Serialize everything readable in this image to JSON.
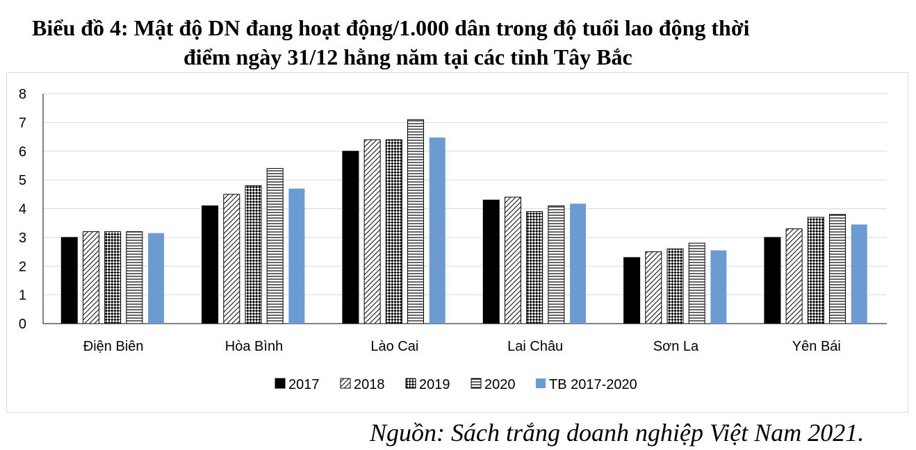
{
  "title": {
    "line1": "Biểu đồ 4: Mật độ DN đang hoạt động/1.000 dân trong độ tuổi lao động thời",
    "line2": "điểm ngày 31/12 hằng năm tại các tỉnh Tây Bắc"
  },
  "source": "Nguồn: Sách trắng doanh nghiệp Việt Nam 2021.",
  "chart_data": {
    "type": "bar",
    "title": "Biểu đồ 4: Mật độ DN đang hoạt động/1.000 dân trong độ tuổi lao động thời điểm ngày 31/12 hằng năm tại các tỉnh Tây Bắc",
    "categories": [
      "Điện Biên",
      "Hòa Bình",
      "Lào Cai",
      "Lai Châu",
      "Sơn La",
      "Yên Bái"
    ],
    "series": [
      {
        "name": "2017",
        "fill": "solid-black",
        "values": [
          3.0,
          4.1,
          6.0,
          4.3,
          2.3,
          3.0
        ]
      },
      {
        "name": "2018",
        "fill": "diagonal-hatch",
        "values": [
          3.2,
          4.5,
          6.4,
          4.4,
          2.5,
          3.3
        ]
      },
      {
        "name": "2019",
        "fill": "checker-hatch",
        "values": [
          3.2,
          4.8,
          6.4,
          3.9,
          2.6,
          3.7
        ]
      },
      {
        "name": "2020",
        "fill": "horizontal-lines",
        "values": [
          3.2,
          5.4,
          7.1,
          4.1,
          2.8,
          3.8
        ]
      },
      {
        "name": "TB 2017-2020",
        "fill": "solid-blue",
        "values": [
          3.15,
          4.7,
          6.475,
          4.175,
          2.55,
          3.45
        ]
      }
    ],
    "xlabel": "",
    "ylabel": "",
    "ylim": [
      0,
      8
    ],
    "yticks": [
      "0",
      "1",
      "2",
      "3",
      "4",
      "5",
      "6",
      "7",
      "8"
    ],
    "grid": true,
    "legend": "bottom",
    "colors": {
      "black": "#000000",
      "blue": "#6c9bd2",
      "grid": "#d9d9d9"
    }
  }
}
